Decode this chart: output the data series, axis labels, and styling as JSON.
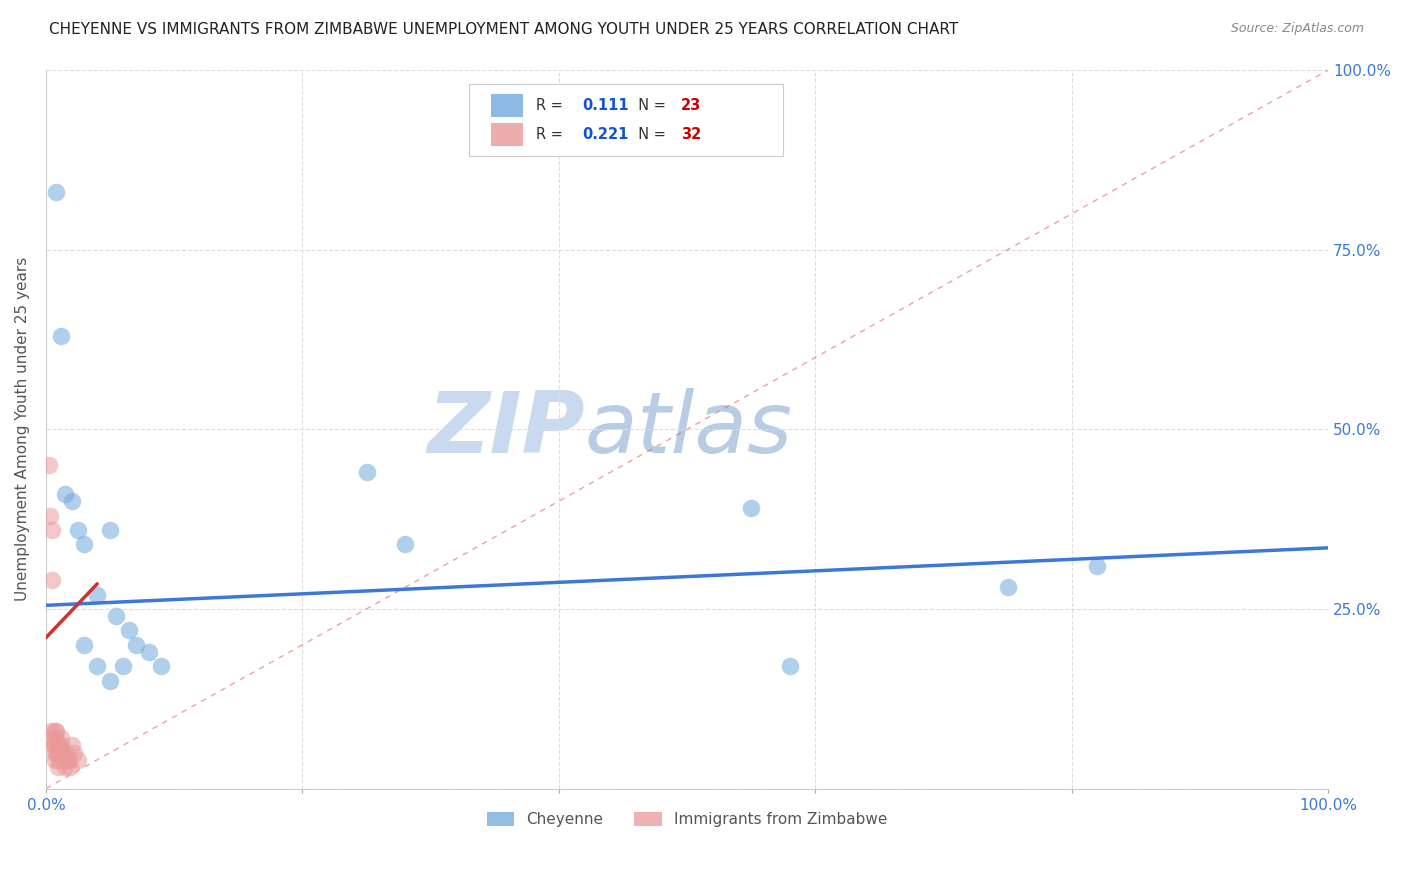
{
  "title": "CHEYENNE VS IMMIGRANTS FROM ZIMBABWE UNEMPLOYMENT AMONG YOUTH UNDER 25 YEARS CORRELATION CHART",
  "source": "Source: ZipAtlas.com",
  "ylabel": "Unemployment Among Youth under 25 years",
  "xlim": [
    0.0,
    1.0
  ],
  "ylim": [
    0.0,
    1.0
  ],
  "cheyenne_color": "#6fa8dc",
  "zimbabwe_color": "#ea9999",
  "trend_blue_color": "#3c78d8",
  "trend_pink_color": "#cc3333",
  "diagonal_color": "#cccccc",
  "watermark_zip_color": "#c9daf8",
  "watermark_atlas_color": "#a8c4e0",
  "legend_R_color": "#1155cc",
  "legend_N_color": "#cc0000",
  "cheyenne_R": "0.111",
  "cheyenne_N": "23",
  "zimbabwe_R": "0.221",
  "zimbabwe_N": "32",
  "cheyenne_points_x": [
    0.008,
    0.012,
    0.015,
    0.02,
    0.025,
    0.03,
    0.04,
    0.05,
    0.055,
    0.06,
    0.065,
    0.07,
    0.08,
    0.09,
    0.25,
    0.28,
    0.55,
    0.58,
    0.75,
    0.82,
    0.03,
    0.04,
    0.05
  ],
  "cheyenne_points_y": [
    0.83,
    0.63,
    0.41,
    0.4,
    0.36,
    0.34,
    0.27,
    0.36,
    0.24,
    0.17,
    0.22,
    0.2,
    0.19,
    0.17,
    0.44,
    0.34,
    0.39,
    0.17,
    0.28,
    0.31,
    0.2,
    0.17,
    0.15
  ],
  "zimbabwe_points_x": [
    0.002,
    0.003,
    0.004,
    0.005,
    0.005,
    0.006,
    0.007,
    0.007,
    0.008,
    0.008,
    0.009,
    0.01,
    0.01,
    0.011,
    0.012,
    0.013,
    0.014,
    0.015,
    0.016,
    0.017,
    0.018,
    0.019,
    0.02,
    0.022,
    0.025,
    0.005,
    0.006,
    0.007,
    0.008,
    0.009,
    0.01,
    0.012
  ],
  "zimbabwe_points_y": [
    0.45,
    0.38,
    0.08,
    0.36,
    0.29,
    0.06,
    0.08,
    0.04,
    0.07,
    0.05,
    0.03,
    0.06,
    0.04,
    0.05,
    0.06,
    0.05,
    0.04,
    0.03,
    0.05,
    0.04,
    0.04,
    0.03,
    0.06,
    0.05,
    0.04,
    0.07,
    0.06,
    0.05,
    0.08,
    0.06,
    0.05,
    0.07
  ],
  "cheyenne_trend_x": [
    0.0,
    1.0
  ],
  "cheyenne_trend_y": [
    0.255,
    0.335
  ],
  "zimbabwe_trend_x": [
    0.0,
    0.04
  ],
  "zimbabwe_trend_y": [
    0.21,
    0.285
  ],
  "marker_size": 160,
  "alpha": 0.55,
  "grid_color": "#dddddd"
}
